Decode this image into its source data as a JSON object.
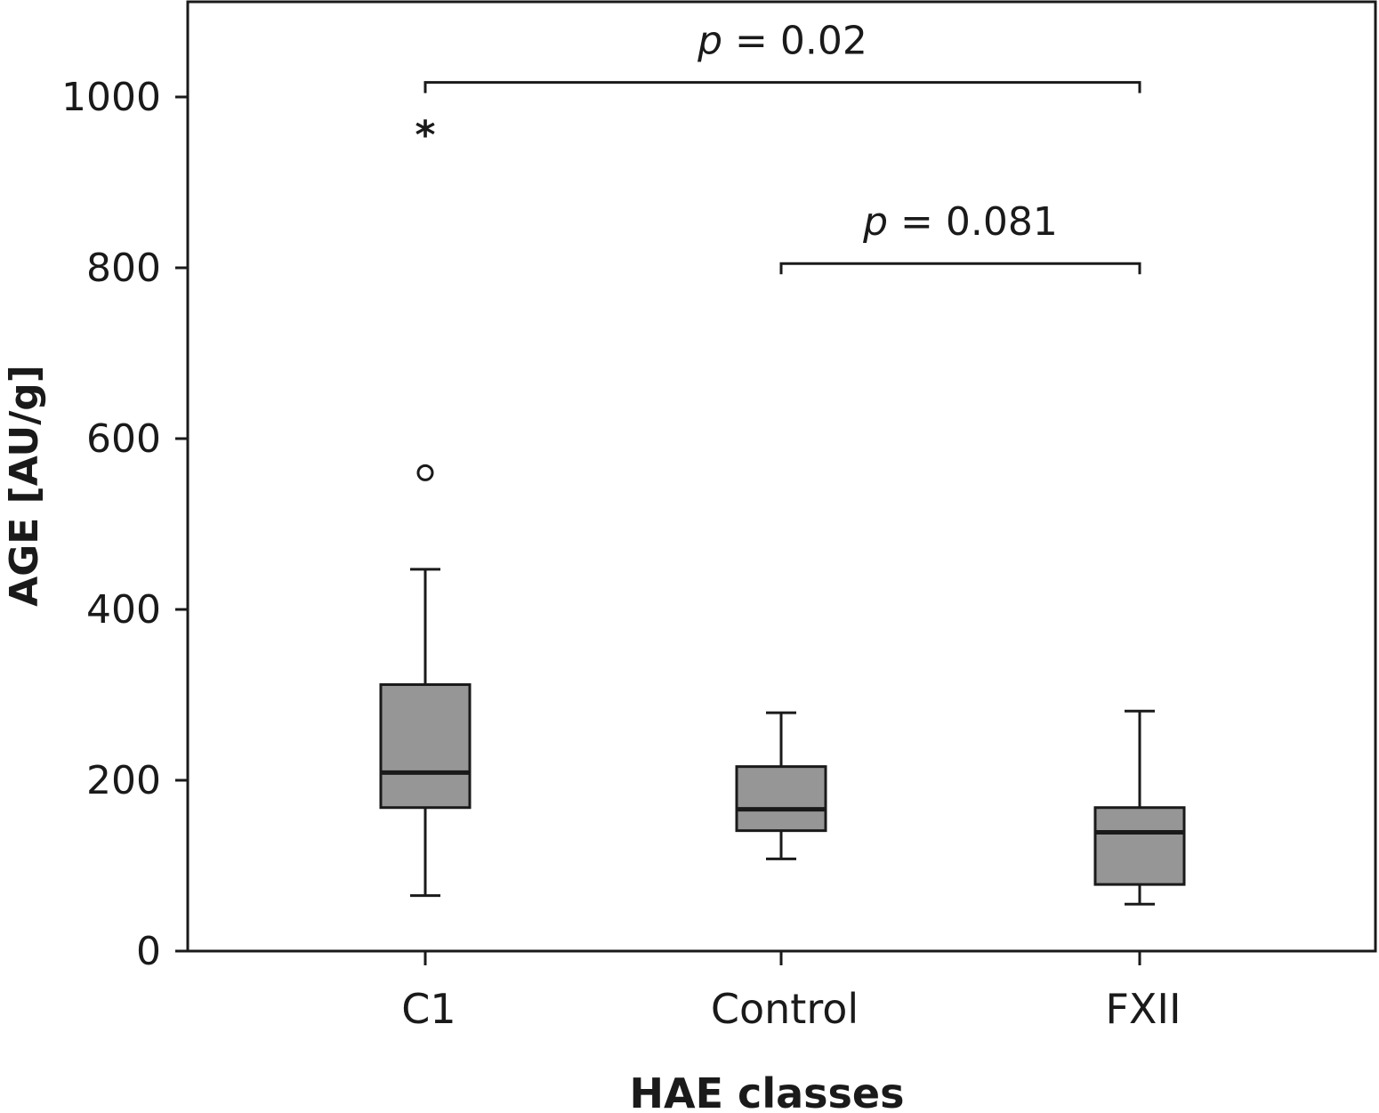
{
  "chart_data": {
    "type": "box",
    "title": "",
    "xlabel": "HAE classes",
    "ylabel": "AGE [AU/g]",
    "ylim": [
      0,
      1110
    ],
    "yticks": [
      0,
      200,
      400,
      600,
      800,
      1000
    ],
    "ytick_labels": [
      "0",
      "200",
      "400",
      "600",
      "800",
      "1000"
    ],
    "grid": false,
    "categories": [
      "C1",
      "Control",
      "FXII"
    ],
    "box_color": "#969696",
    "boxes": [
      {
        "category": "C1",
        "whisker_low": 65,
        "q1": 168,
        "median": 209,
        "q3": 312,
        "whisker_high": 447,
        "outliers": [
          {
            "value": 560,
            "marker": "○"
          },
          {
            "value": 963,
            "marker": "*"
          }
        ]
      },
      {
        "category": "Control",
        "whisker_low": 108,
        "q1": 141,
        "median": 166,
        "q3": 216,
        "whisker_high": 279,
        "outliers": []
      },
      {
        "category": "FXII",
        "whisker_low": 55,
        "q1": 78,
        "median": 139,
        "q3": 168,
        "whisker_high": 281,
        "outliers": []
      }
    ],
    "annotations": [
      {
        "from": "C1",
        "to": "FXII",
        "y": 1017,
        "prefix": "p",
        "text": " = 0.02"
      },
      {
        "from": "Control",
        "to": "FXII",
        "y": 805,
        "prefix": "p",
        "text": " = 0.081"
      }
    ]
  }
}
